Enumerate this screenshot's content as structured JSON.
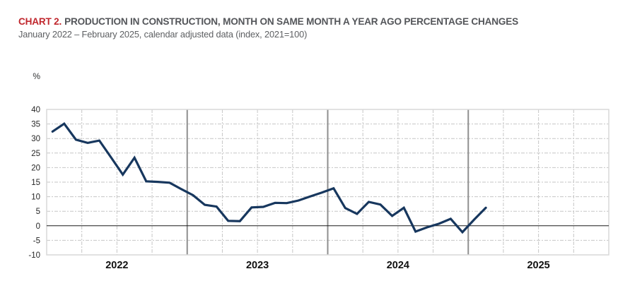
{
  "header": {
    "chart_label": "CHART 2.",
    "title": "PRODUCTION IN CONSTRUCTION, MONTH ON SAME MONTH A YEAR AGO PERCENTAGE CHANGES",
    "subtitle": "January 2022 – February 2025, calendar adjusted data (index, 2021=100)"
  },
  "colors": {
    "accent_red": "#c0272d",
    "title_text": "#54565a",
    "subtitle_text": "#5d5f62",
    "line": "#17375e",
    "grid_light": "#c6c6c6",
    "year_separator": "#8f8f8f",
    "plot_border": "#d8d8d8",
    "zero_line": "#1a1a1a",
    "tick_text": "#262626",
    "year_text": "#111111"
  },
  "chart_data": {
    "type": "line",
    "title": "PRODUCTION IN CONSTRUCTION, MONTH ON SAME MONTH A YEAR AGO PERCENTAGE CHANGES",
    "subtitle": "January 2022 – February 2025, calendar adjusted data (index, 2021=100)",
    "unit_label": "%",
    "ylim": [
      -10,
      40
    ],
    "y_ticks": [
      40,
      35,
      30,
      25,
      20,
      15,
      10,
      5,
      0,
      -5,
      -10
    ],
    "x_axis": {
      "start": "2022-01",
      "end": "2025-12",
      "months_shown": 48,
      "year_labels": [
        "2022",
        "2023",
        "2024",
        "2025"
      ],
      "gridline_interval_months": 3,
      "year_separator": true
    },
    "grid": {
      "horizontal_style": "dash-dot",
      "vertical_style": "dash-dot",
      "zero_line": "solid-black"
    },
    "legend": "none",
    "series": [
      {
        "name": "Production in construction, month on same month a year ago percentage change",
        "months": [
          "2022-01",
          "2022-02",
          "2022-03",
          "2022-04",
          "2022-05",
          "2022-06",
          "2022-07",
          "2022-08",
          "2022-09",
          "2022-10",
          "2022-11",
          "2022-12",
          "2023-01",
          "2023-02",
          "2023-03",
          "2023-04",
          "2023-05",
          "2023-06",
          "2023-07",
          "2023-08",
          "2023-09",
          "2023-10",
          "2023-11",
          "2023-12",
          "2024-01",
          "2024-02",
          "2024-03",
          "2024-04",
          "2024-05",
          "2024-06",
          "2024-07",
          "2024-08",
          "2024-09",
          "2024-10",
          "2024-11",
          "2024-12",
          "2025-01",
          "2025-02"
        ],
        "values": [
          32.4,
          35.1,
          29.6,
          28.5,
          29.3,
          23.5,
          17.6,
          23.4,
          15.3,
          15.1,
          14.8,
          12.6,
          10.5,
          7.2,
          6.6,
          1.7,
          1.6,
          6.3,
          6.5,
          7.9,
          7.8,
          8.7,
          10.1,
          11.4,
          12.9,
          6.1,
          4.1,
          8.2,
          7.3,
          3.4,
          6.2,
          -2.0,
          -0.5,
          0.7,
          2.4,
          -2.2,
          2.1,
          6.2
        ]
      }
    ]
  }
}
